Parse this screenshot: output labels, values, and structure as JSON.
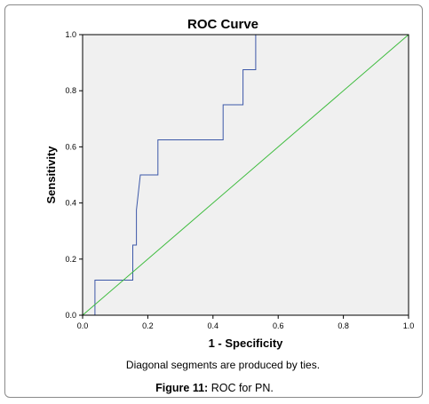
{
  "caption": {
    "label": "Figure 11:",
    "text": "ROC for PN."
  },
  "note": "Diagonal segments are produced by ties.",
  "chart_data": {
    "type": "line",
    "title": "ROC Curve",
    "xlabel": "1 - Specificity",
    "ylabel": "Sensitivity",
    "xlim": [
      0,
      1
    ],
    "ylim": [
      0,
      1
    ],
    "xticks": [
      "0.0",
      "0.2",
      "0.4",
      "0.6",
      "0.8",
      "1.0"
    ],
    "yticks": [
      "0.0",
      "0.2",
      "0.4",
      "0.6",
      "0.8",
      "1.0"
    ],
    "grid": false,
    "background": "#f0f0f0",
    "series": [
      {
        "color": "#3c58a8",
        "points": [
          [
            0.0,
            0.0
          ],
          [
            0.0,
            0.0
          ],
          [
            0.038,
            0.0
          ],
          [
            0.038,
            0.125
          ],
          [
            0.154,
            0.125
          ],
          [
            0.154,
            0.25
          ],
          [
            0.165,
            0.25
          ],
          [
            0.165,
            0.375
          ],
          [
            0.177,
            0.5
          ],
          [
            0.231,
            0.5
          ],
          [
            0.231,
            0.625
          ],
          [
            0.431,
            0.625
          ],
          [
            0.431,
            0.75
          ],
          [
            0.492,
            0.75
          ],
          [
            0.492,
            0.875
          ],
          [
            0.531,
            0.875
          ],
          [
            0.531,
            1.0
          ],
          [
            1.0,
            1.0
          ]
        ]
      },
      {
        "color": "#3cbb3c",
        "points": [
          [
            0.0,
            0.0
          ],
          [
            1.0,
            1.0
          ]
        ]
      }
    ]
  }
}
